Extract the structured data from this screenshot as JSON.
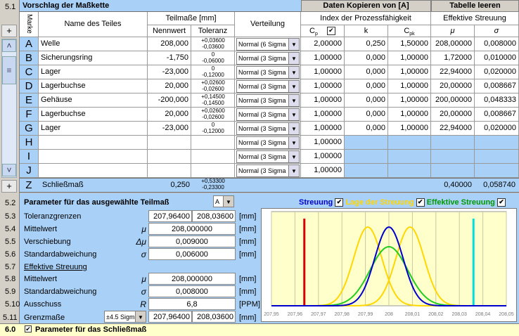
{
  "section_5_1": {
    "num": "5.1",
    "title": "Vorschlag der Maßkette"
  },
  "copy_header": "Daten Kopieren von [A]",
  "clear_header": "Tabelle leeren",
  "headers": {
    "marke": "Marke",
    "name": "Name des Teiles",
    "teilmasse": "Teilmaße [mm]",
    "nennwert": "Nennwert",
    "toleranz": "Toleranz",
    "verteilung": "Verteilung",
    "index": "Index der Prozessfähigkeit",
    "cp": "C",
    "cp_sub": "p",
    "k": "k",
    "cpk": "C",
    "cpk_sub": "pk",
    "eff": "Effektive Streuung",
    "mu": "μ",
    "sigma": "σ"
  },
  "rows": [
    {
      "mark": "A",
      "name": "Welle",
      "nenn": "208,000",
      "tol_up": "+0,03600",
      "tol_lo": "-0,03600",
      "dist": "Normal (6 Sigma",
      "cp": "2,00000",
      "k": "0,250",
      "cpk": "1,50000",
      "mu": "208,00000",
      "sigma": "0,008000"
    },
    {
      "mark": "B",
      "name": "Sicherungsring",
      "nenn": "-1,750",
      "tol_up": "0",
      "tol_lo": "-0,06000",
      "dist": "Normal (3 Sigma",
      "cp": "1,00000",
      "k": "0,000",
      "cpk": "1,00000",
      "mu": "1,72000",
      "sigma": "0,010000"
    },
    {
      "mark": "C",
      "name": "Lager",
      "nenn": "-23,000",
      "tol_up": "0",
      "tol_lo": "-0,12000",
      "dist": "Normal (3 Sigma",
      "cp": "1,00000",
      "k": "0,000",
      "cpk": "1,00000",
      "mu": "22,94000",
      "sigma": "0,020000"
    },
    {
      "mark": "D",
      "name": "Lagerbuchse",
      "nenn": "20,000",
      "tol_up": "+0,02600",
      "tol_lo": "-0,02600",
      "dist": "Normal (3 Sigma",
      "cp": "1,00000",
      "k": "0,000",
      "cpk": "1,00000",
      "mu": "20,00000",
      "sigma": "0,008667"
    },
    {
      "mark": "E",
      "name": "Gehäuse",
      "nenn": "-200,000",
      "tol_up": "+0,14500",
      "tol_lo": "-0,14500",
      "dist": "Normal (3 Sigma",
      "cp": "1,00000",
      "k": "0,000",
      "cpk": "1,00000",
      "mu": "200,00000",
      "sigma": "0,048333"
    },
    {
      "mark": "F",
      "name": "Lagerbuchse",
      "nenn": "20,000",
      "tol_up": "+0,02600",
      "tol_lo": "-0,02600",
      "dist": "Normal (3 Sigma",
      "cp": "1,00000",
      "k": "0,000",
      "cpk": "1,00000",
      "mu": "20,00000",
      "sigma": "0,008667"
    },
    {
      "mark": "G",
      "name": "Lager",
      "nenn": "-23,000",
      "tol_up": "0",
      "tol_lo": "-0,12000",
      "dist": "Normal (3 Sigma",
      "cp": "1,00000",
      "k": "0,000",
      "cpk": "1,00000",
      "mu": "22,94000",
      "sigma": "0,020000"
    },
    {
      "mark": "H",
      "name": "",
      "nenn": "",
      "tol_up": "",
      "tol_lo": "",
      "dist": "Normal (3 Sigma",
      "cp": "1,00000",
      "k": "",
      "cpk": "",
      "mu": "",
      "sigma": ""
    },
    {
      "mark": "I",
      "name": "",
      "nenn": "",
      "tol_up": "",
      "tol_lo": "",
      "dist": "Normal (3 Sigma",
      "cp": "1,00000",
      "k": "",
      "cpk": "",
      "mu": "",
      "sigma": ""
    },
    {
      "mark": "J",
      "name": "",
      "nenn": "",
      "tol_up": "",
      "tol_lo": "",
      "dist": "Normal (3 Sigma",
      "cp": "1,00000",
      "k": "",
      "cpk": "",
      "mu": "",
      "sigma": ""
    }
  ],
  "zrow": {
    "mark": "Z",
    "name": "Schließmaß",
    "nenn": "0,250",
    "tol_up": "+0,53300",
    "tol_lo": "-0,23300",
    "mu": "0,40000",
    "sigma": "0,058740"
  },
  "section_5_2": {
    "num": "5.2",
    "title": "Parameter für das ausgewählte Teilmaß",
    "selected": "A",
    "rows": [
      {
        "num": "5.3",
        "label": "Toleranzgrenzen",
        "sym": "",
        "v1": "207,96400",
        "v2": "208,03600",
        "unit": "[mm]"
      },
      {
        "num": "5.4",
        "label": "Mittelwert",
        "sym": "μ",
        "v1": "208,000000",
        "v2": "",
        "unit": "[mm]"
      },
      {
        "num": "5.5",
        "label": "Verschiebung",
        "sym": "Δμ",
        "v1": "0,009000",
        "v2": "",
        "unit": "[mm]"
      },
      {
        "num": "5.6",
        "label": "Standardabweichung",
        "sym": "σ",
        "v1": "0,006000",
        "v2": "",
        "unit": "[mm]"
      }
    ],
    "eff_num": "5.7",
    "eff_title": "Effektive Streuung",
    "eff_rows": [
      {
        "num": "5.8",
        "label": "Mittelwert",
        "sym": "μ",
        "v1": "208,000000",
        "v2": "",
        "unit": "[mm]"
      },
      {
        "num": "5.9",
        "label": "Standardabweichung",
        "sym": "σ",
        "v1": "0,008000",
        "v2": "",
        "unit": "[mm]"
      },
      {
        "num": "5.10",
        "label": "Ausschuss",
        "sym": "R",
        "v1": "6,8",
        "v2": "",
        "unit": "[PPM]"
      }
    ],
    "grenz": {
      "num": "5.11",
      "label": "Grenzmaße",
      "select": "±4.5 Sigm",
      "v1": "207,96400",
      "v2": "208,03600",
      "unit": "[mm]"
    }
  },
  "legend": {
    "streuung": "Streuung",
    "lage": "Lage der Streuung",
    "eff": "Effektive Streuung",
    "streuung_color": "#0000cc",
    "lage_color": "#ffd700",
    "eff_color": "#00aa00"
  },
  "section_6_0": {
    "num": "6.0",
    "title": "Parameter für das Schließmaß"
  },
  "sidebar": {
    "plus_top": "+",
    "plus_bottom": "+",
    "up": "˄",
    "down": "˅",
    "grip": "≡"
  },
  "chart_data": {
    "type": "line",
    "x_ticks": [
      "207,95",
      "207,96",
      "207,97",
      "207,98",
      "207,99",
      "208",
      "208,01",
      "208,02",
      "208,03",
      "208,04",
      "208,05"
    ],
    "xlim": [
      207.95,
      208.05
    ],
    "limits": {
      "lower": 207.964,
      "upper": 208.036
    },
    "series": [
      {
        "name": "Streuung",
        "mu": 208.0,
        "sigma": 0.006,
        "color": "#0000cc"
      },
      {
        "name": "Lage der Streuung",
        "mu": 207.991,
        "sigma": 0.006,
        "color": "#ffd700"
      },
      {
        "name": "Lage der Streuung",
        "mu": 208.009,
        "sigma": 0.006,
        "color": "#ffd700"
      },
      {
        "name": "Effektive Streuung",
        "mu": 208.0,
        "sigma": 0.008,
        "color": "#22cc22"
      }
    ]
  }
}
